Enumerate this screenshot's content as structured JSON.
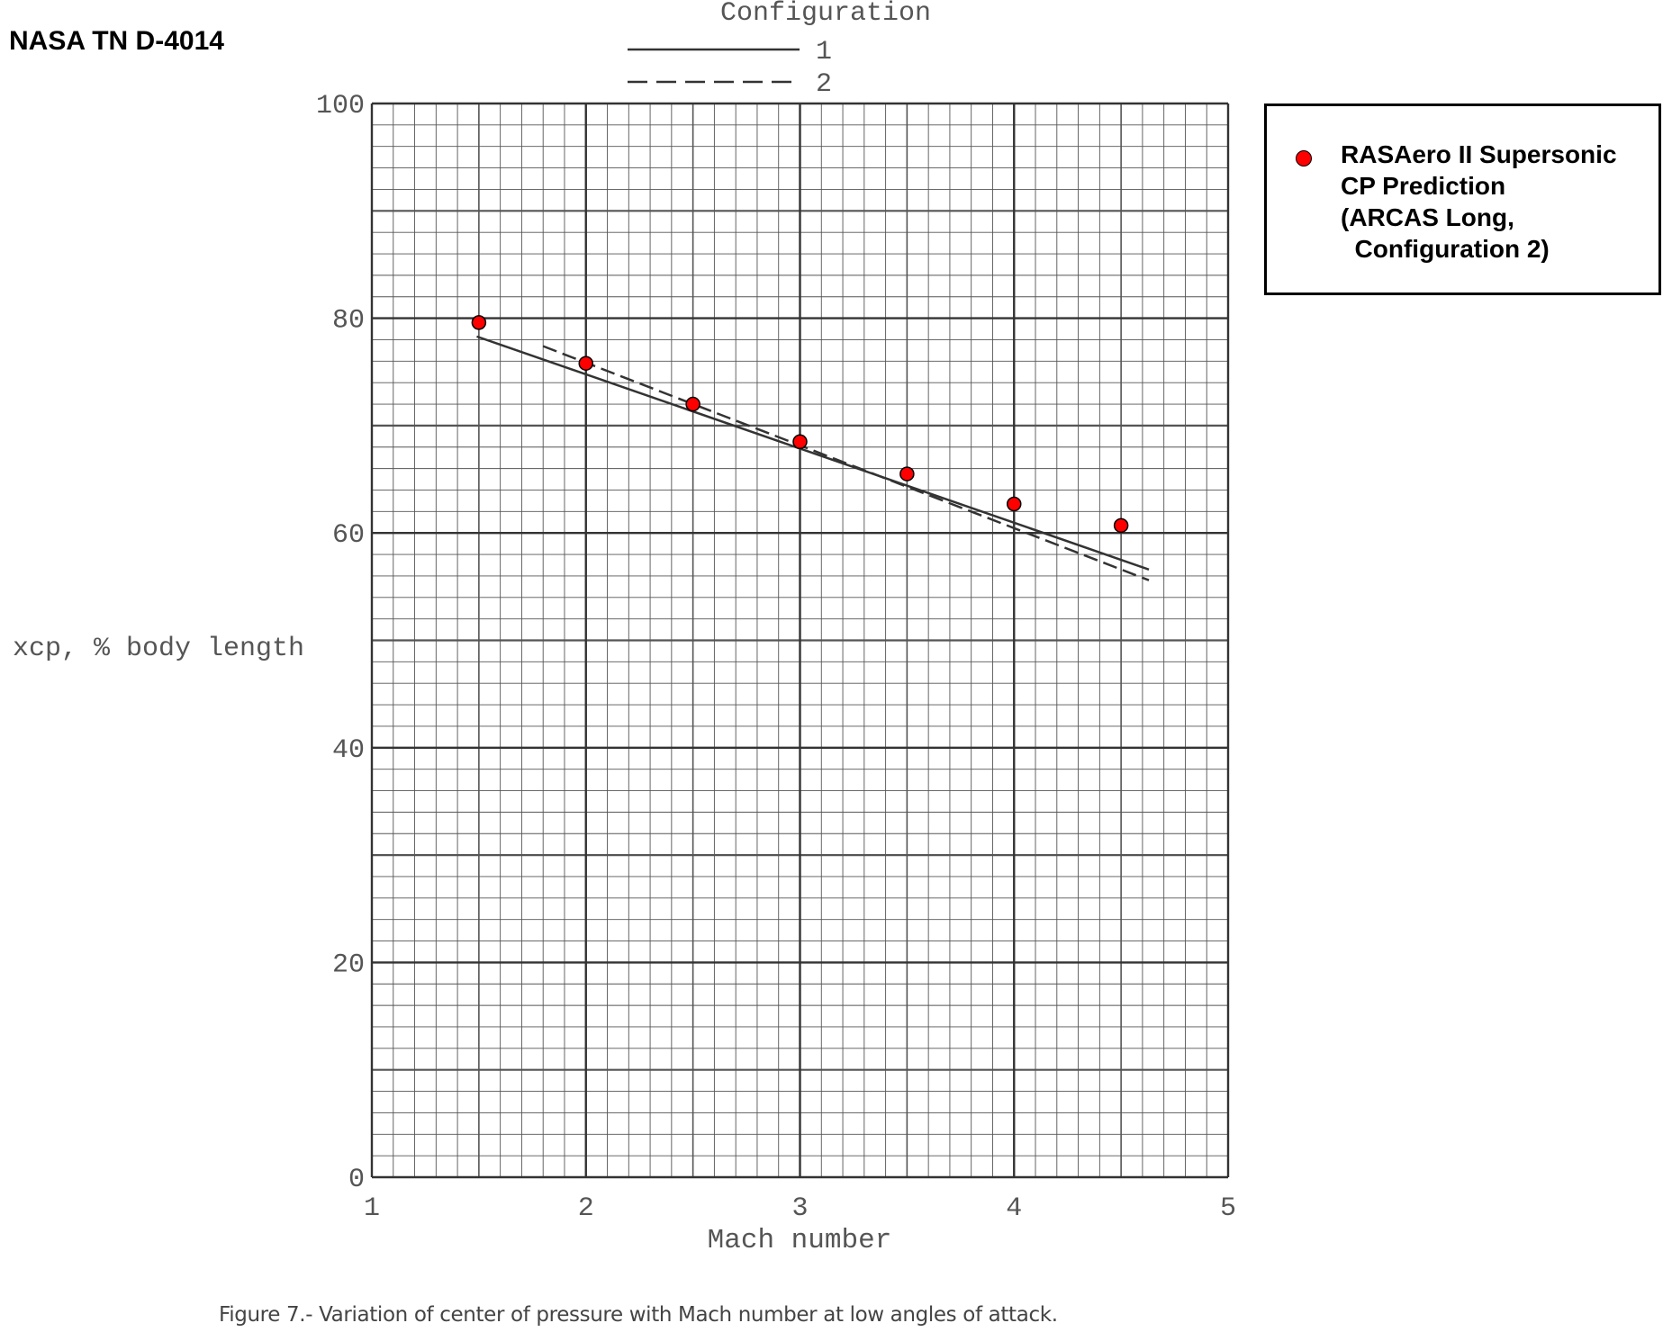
{
  "chart_data": {
    "type": "line",
    "title": "NASA TN D-4014",
    "legend_title": "Configuration",
    "x_label": "Mach number",
    "y_label": "xcp, % body length",
    "caption": "Figure 7.- Variation of center of pressure with Mach number at low angles of attack.",
    "xlim": [
      1,
      5
    ],
    "ylim": [
      0,
      100
    ],
    "xticks": [
      1,
      2,
      3,
      4,
      5
    ],
    "yticks": [
      0,
      20,
      40,
      60,
      80,
      100
    ],
    "grid": true,
    "series": [
      {
        "name": "1",
        "color": "#333333",
        "dash": false,
        "x": [
          1.49,
          4.63
        ],
        "values": [
          78.3,
          56.6
        ]
      },
      {
        "name": "2",
        "color": "#333333",
        "dash": true,
        "x": [
          1.8,
          4.63
        ],
        "values": [
          77.4,
          55.6
        ]
      },
      {
        "name": "RASAero II Supersonic\nCP Prediction\n(ARCAS Long,\n  Configuration 2)",
        "color": "#ff0000",
        "marker": true,
        "x": [
          1.5,
          2,
          2.5,
          3,
          3.5,
          4,
          4.5
        ],
        "values": [
          79.6,
          75.8,
          72.0,
          68.5,
          65.5,
          62.7,
          60.7
        ]
      }
    ]
  }
}
